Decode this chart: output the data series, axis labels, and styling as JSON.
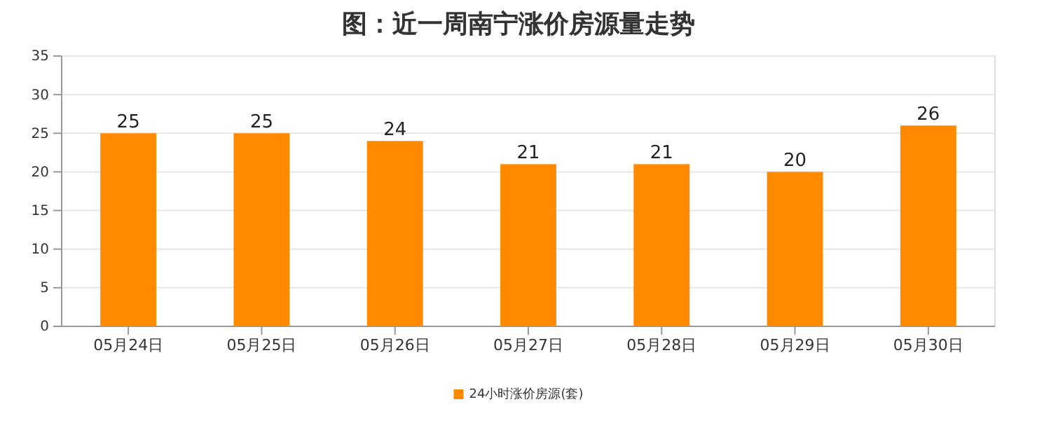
{
  "chart_data": {
    "type": "bar",
    "title": "图：近一周南宁涨价房源量走势",
    "categories": [
      "05月24日",
      "05月25日",
      "05月26日",
      "05月27日",
      "05月28日",
      "05月29日",
      "05月30日"
    ],
    "series": [
      {
        "name": "24小时涨价房源(套)",
        "color": "#ff8a00",
        "values": [
          25,
          25,
          24,
          21,
          21,
          20,
          26
        ]
      }
    ],
    "ylim": [
      0,
      35
    ],
    "yticks": [
      0,
      5,
      10,
      15,
      20,
      25,
      30,
      35
    ],
    "grid": "y",
    "legend": "bottom",
    "data_labels": true
  }
}
